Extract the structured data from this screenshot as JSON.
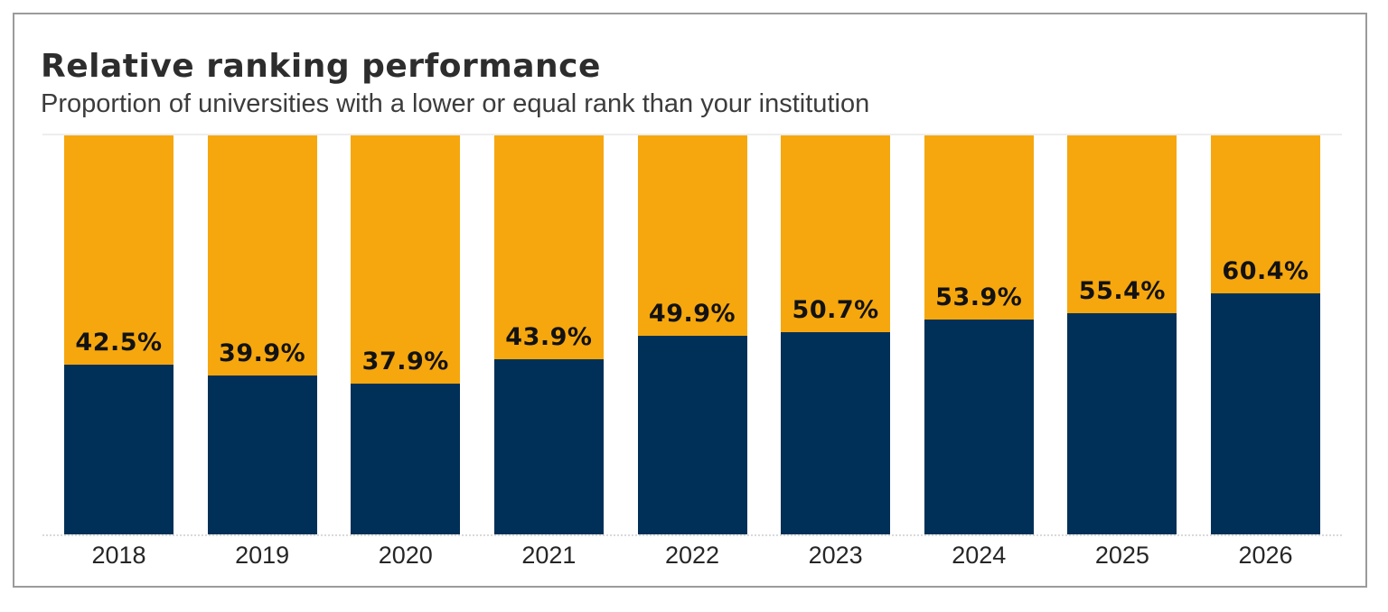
{
  "header": {
    "title": "Relative ranking performance",
    "subtitle": "Proportion of universities with a lower or equal rank than your institution"
  },
  "colors": {
    "bar_primary_navy": "#003057",
    "bar_secondary_amber": "#F6A70E",
    "frame_border": "#9b9b9b",
    "label_text": "#121212",
    "title_text": "#2d2d2d"
  },
  "chart_data": {
    "type": "bar",
    "stacked": true,
    "orientation": "vertical",
    "title": "Relative ranking performance",
    "subtitle": "Proportion of universities with a lower or equal rank than your institution",
    "categories": [
      "2018",
      "2019",
      "2020",
      "2021",
      "2022",
      "2023",
      "2024",
      "2025",
      "2026"
    ],
    "series": [
      {
        "name": "proportion_lower_or_equal",
        "color": "#003057",
        "values": [
          42.5,
          39.9,
          37.9,
          43.9,
          49.9,
          50.7,
          53.9,
          55.4,
          60.4
        ]
      },
      {
        "name": "remainder",
        "color": "#F6A70E",
        "values": [
          57.5,
          60.1,
          62.1,
          56.1,
          50.1,
          49.3,
          46.1,
          44.6,
          39.6
        ]
      }
    ],
    "data_labels": [
      "42.5%",
      "39.9%",
      "37.9%",
      "43.9%",
      "49.9%",
      "50.7%",
      "53.9%",
      "55.4%",
      "60.4%"
    ],
    "xlabel": "",
    "ylabel": "",
    "ylim": [
      0,
      100
    ],
    "legend": "none",
    "grid": "single light gridline at 100% top, dotted baseline at 0%"
  }
}
